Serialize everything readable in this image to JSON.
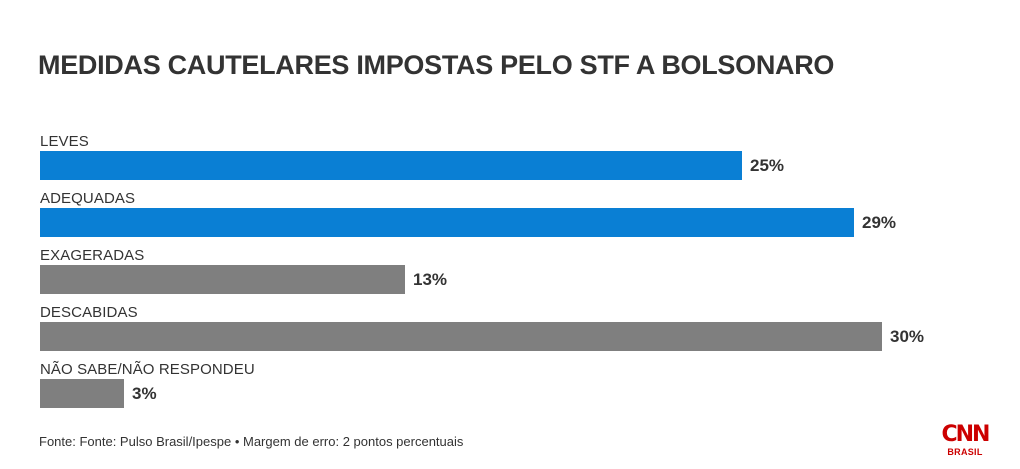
{
  "chart_data": {
    "type": "bar",
    "orientation": "horizontal",
    "title": "MEDIDAS CAUTELARES IMPOSTAS PELO STF A BOLSONARO",
    "categories": [
      "LEVES",
      "ADEQUADAS",
      "EXAGERADAS",
      "DESCABIDAS",
      "NÃO SABE/NÃO RESPONDEU"
    ],
    "values": [
      25,
      29,
      13,
      30,
      3
    ],
    "value_labels": [
      "25%",
      "29%",
      "13%",
      "30%",
      "3%"
    ],
    "bar_colors": [
      "#0a7fd4",
      "#0a7fd4",
      "#7f7f7f",
      "#7f7f7f",
      "#7f7f7f"
    ],
    "xlim": [
      0,
      30
    ],
    "grid": false,
    "legend": "none"
  },
  "footer": {
    "source": "Fonte: Fonte: Pulso Brasil/Ipespe • Margem de erro: 2 pontos percentuais"
  },
  "logo": {
    "mark": "CNN",
    "sub": "BRASIL",
    "color": "#cc0000"
  }
}
